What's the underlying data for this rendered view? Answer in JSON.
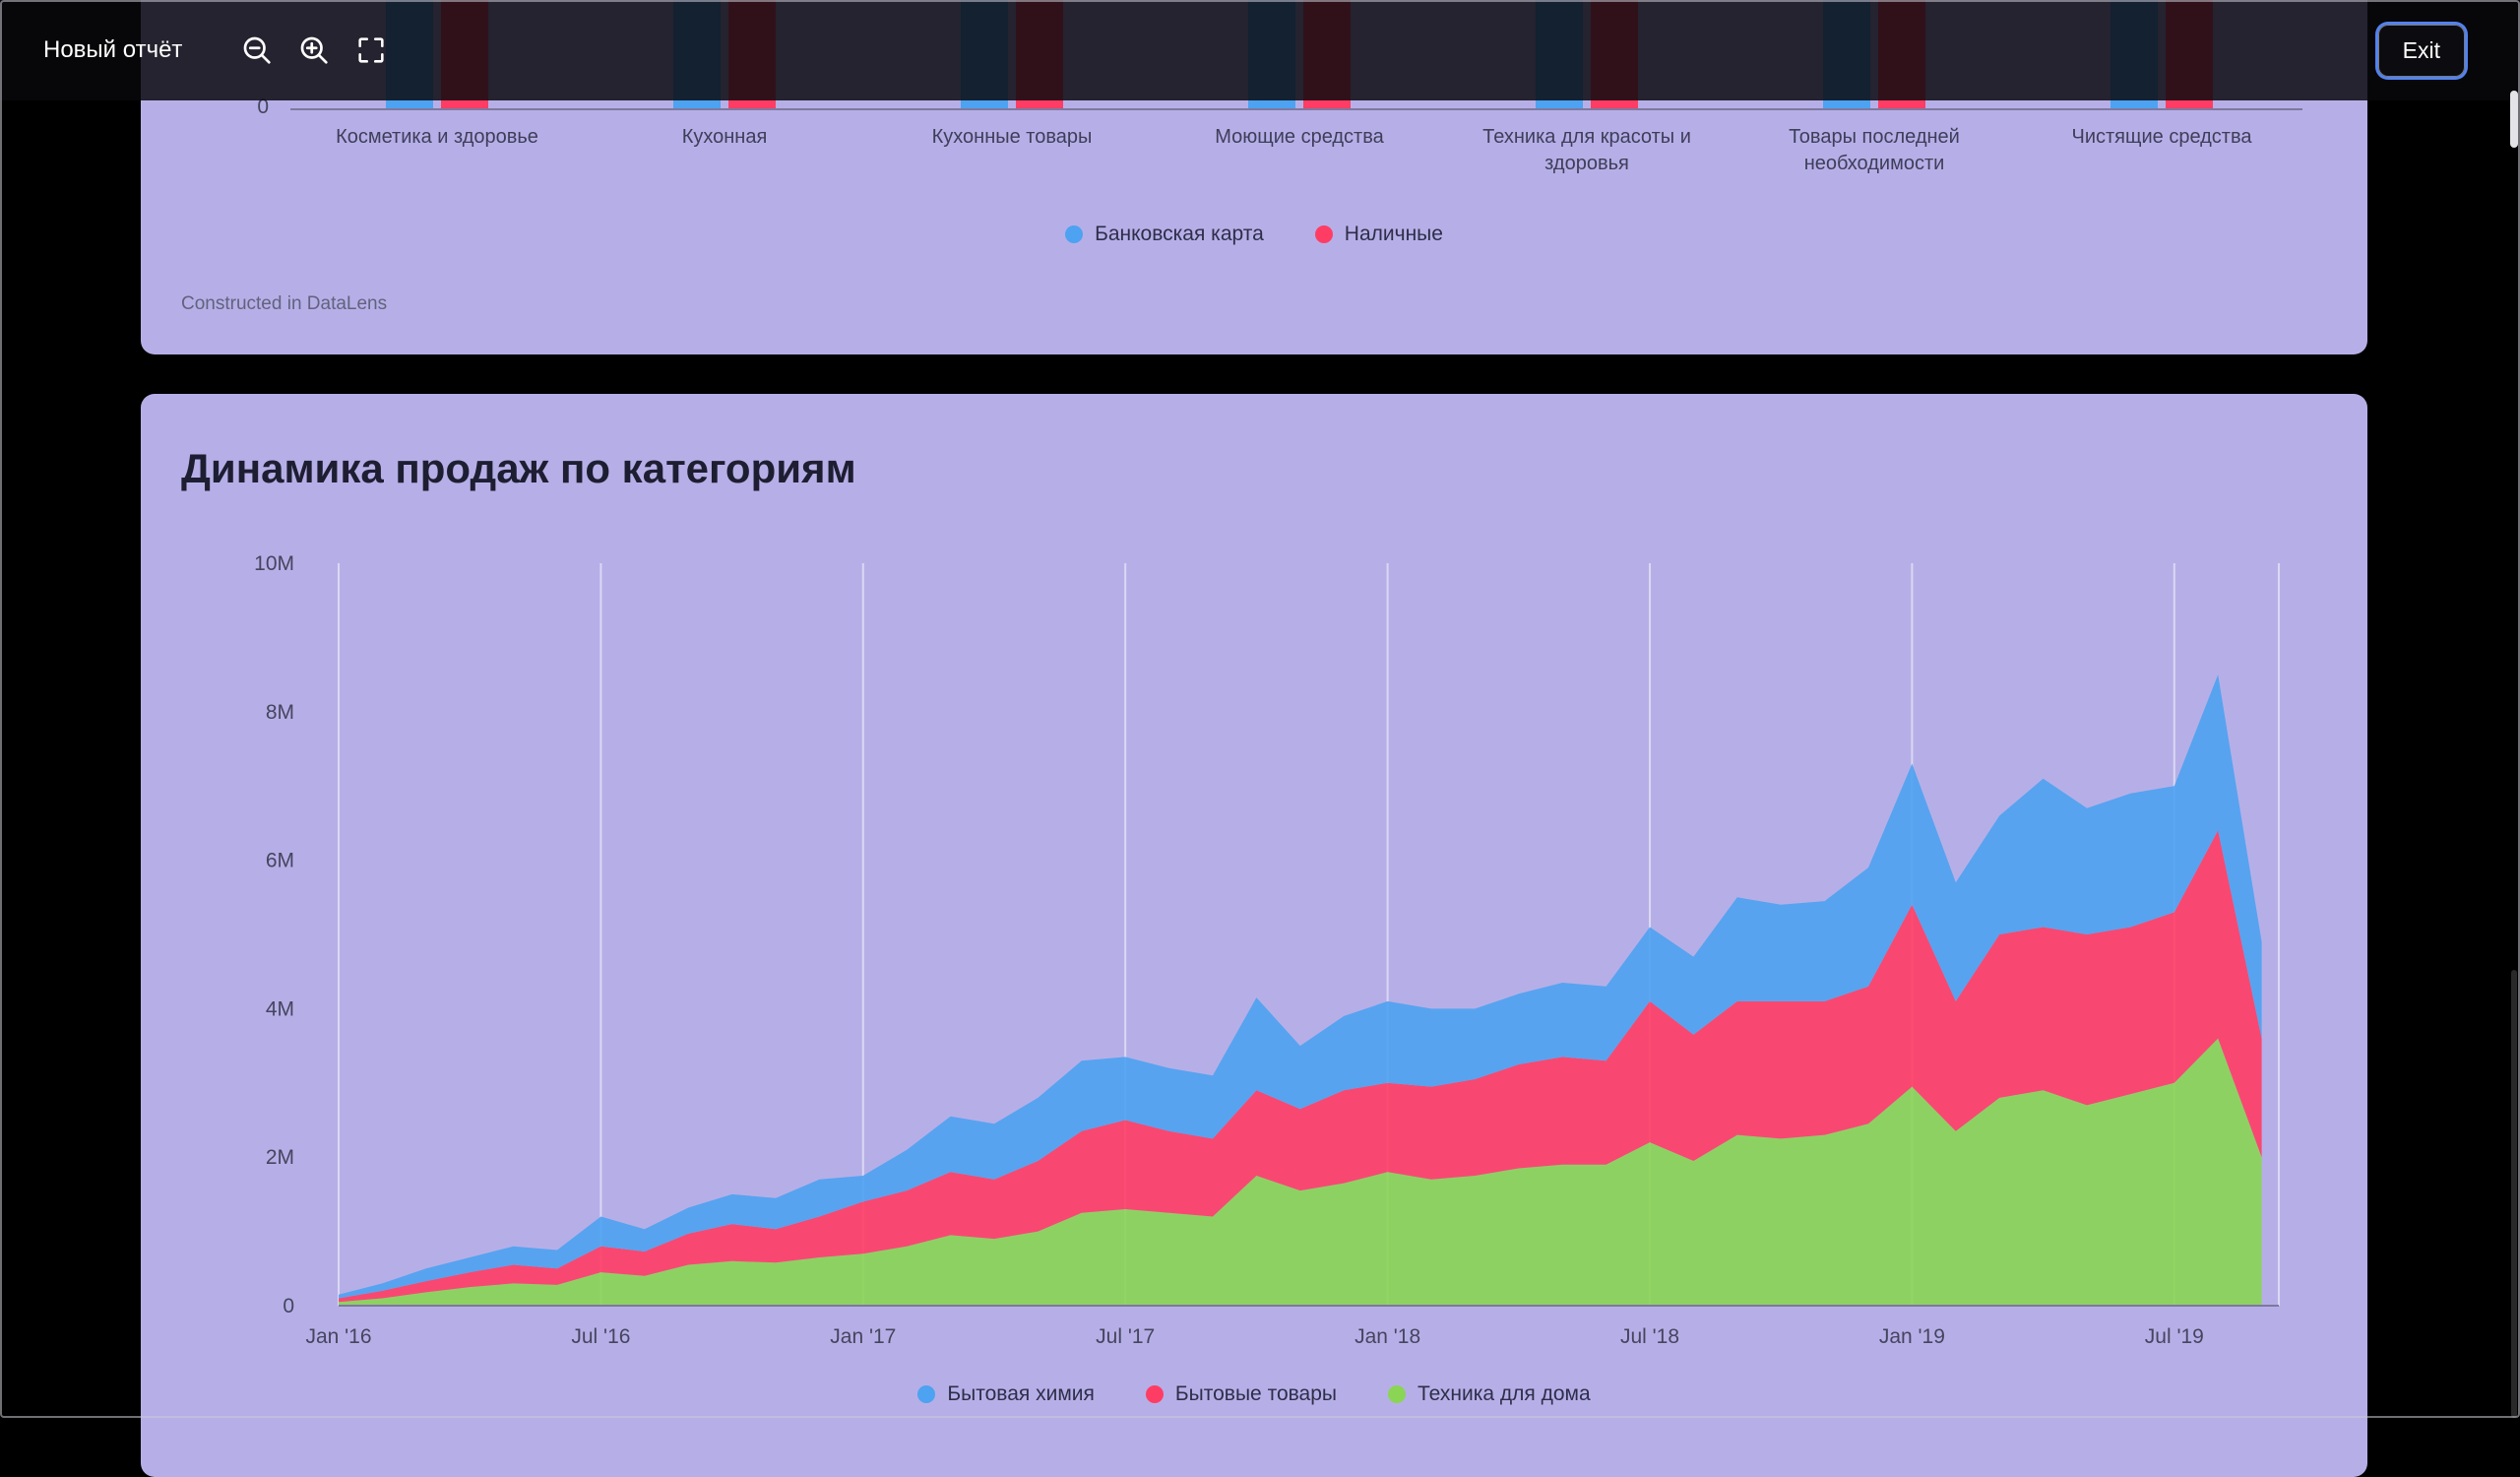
{
  "theme": {
    "page_bg": "#000000",
    "card_bg": "#b6afe7",
    "accent_blue": "#5282f0",
    "series_blue": "#4DA2F1",
    "series_red": "#FF3D64",
    "series_green": "#8AD554"
  },
  "header": {
    "title": "Новый отчёт",
    "exit_label": "Exit",
    "icons": [
      "zoom-out",
      "zoom-in",
      "fullscreen"
    ]
  },
  "payment_chart": {
    "y_axis_visible_label": "0",
    "footer_link": "Constructed in DataLens"
  },
  "chart_data": [
    {
      "type": "bar",
      "title": "",
      "categories": [
        "Косметика и здоровье",
        "Кухонная",
        "Кухонные товары",
        "Моющие средства",
        "Техника для красоты и здоровья",
        "Товары последней необходимости",
        "Чистящие средства"
      ],
      "series": [
        {
          "name": "Банковская карта",
          "color": "#4DA2F1"
        },
        {
          "name": "Наличные",
          "color": "#FF3D64"
        }
      ],
      "visible_axis_labels": [
        "0"
      ],
      "note": "Columns are cropped by page scroll; bar values are not visible in the screenshot",
      "legend_position": "bottom",
      "footer": "Constructed in DataLens"
    },
    {
      "type": "area",
      "stacked": true,
      "title": "Динамика продаж по категориям",
      "x": [
        "2016-01",
        "2016-02",
        "2016-03",
        "2016-04",
        "2016-05",
        "2016-06",
        "2016-07",
        "2016-08",
        "2016-09",
        "2016-10",
        "2016-11",
        "2016-12",
        "2017-01",
        "2017-02",
        "2017-03",
        "2017-04",
        "2017-05",
        "2017-06",
        "2017-07",
        "2017-08",
        "2017-09",
        "2017-10",
        "2017-11",
        "2017-12",
        "2018-01",
        "2018-02",
        "2018-03",
        "2018-04",
        "2018-05",
        "2018-06",
        "2018-07",
        "2018-08",
        "2018-09",
        "2018-10",
        "2018-11",
        "2018-12",
        "2019-01",
        "2019-02",
        "2019-03",
        "2019-04",
        "2019-05",
        "2019-06",
        "2019-07",
        "2019-08",
        "2019-09"
      ],
      "x_tick_labels": [
        "Jan '16",
        "Jul '16",
        "Jan '17",
        "Jul '17",
        "Jan '18",
        "Jul '18",
        "Jan '19",
        "Jul '19"
      ],
      "y_tick_labels": [
        "0",
        "2M",
        "4M",
        "6M",
        "8M",
        "10M"
      ],
      "ylim": [
        0,
        10000000
      ],
      "values_unit": "millions",
      "series": [
        {
          "name": "Бытовая химия",
          "color": "#4DA2F1",
          "values": [
            0.05,
            0.1,
            0.17,
            0.2,
            0.25,
            0.25,
            0.4,
            0.3,
            0.35,
            0.4,
            0.42,
            0.5,
            0.35,
            0.55,
            0.75,
            0.75,
            0.85,
            0.95,
            0.85,
            0.85,
            0.85,
            1.25,
            0.85,
            1.0,
            1.1,
            1.05,
            0.95,
            0.95,
            1.0,
            1.0,
            1.0,
            1.05,
            1.4,
            1.3,
            1.35,
            1.6,
            1.9,
            1.6,
            1.6,
            2.0,
            1.7,
            1.8,
            1.7,
            2.1,
            1.3
          ]
        },
        {
          "name": "Бытовые товары",
          "color": "#FF3D64",
          "values": [
            0.05,
            0.1,
            0.15,
            0.2,
            0.25,
            0.22,
            0.35,
            0.33,
            0.42,
            0.5,
            0.45,
            0.55,
            0.7,
            0.75,
            0.85,
            0.8,
            0.95,
            1.1,
            1.2,
            1.1,
            1.05,
            1.15,
            1.1,
            1.25,
            1.2,
            1.25,
            1.3,
            1.4,
            1.45,
            1.4,
            1.9,
            1.7,
            1.8,
            1.85,
            1.8,
            1.85,
            2.45,
            1.75,
            2.2,
            2.2,
            2.3,
            2.25,
            2.3,
            2.8,
            1.6
          ]
        },
        {
          "name": "Техника для дома",
          "color": "#8AD554",
          "values": [
            0.05,
            0.1,
            0.18,
            0.25,
            0.3,
            0.28,
            0.45,
            0.4,
            0.55,
            0.6,
            0.58,
            0.65,
            0.7,
            0.8,
            0.95,
            0.9,
            1.0,
            1.25,
            1.3,
            1.25,
            1.2,
            1.75,
            1.55,
            1.65,
            1.8,
            1.7,
            1.75,
            1.85,
            1.9,
            1.9,
            2.2,
            1.95,
            2.3,
            2.25,
            2.3,
            2.45,
            2.95,
            2.35,
            2.8,
            2.9,
            2.7,
            2.85,
            3.0,
            3.6,
            2.0
          ]
        }
      ],
      "stack_order_bottom_to_top": [
        "Техника для дома",
        "Бытовые товары",
        "Бытовая химия"
      ],
      "grid": "vertical-only",
      "legend_position": "bottom"
    }
  ]
}
